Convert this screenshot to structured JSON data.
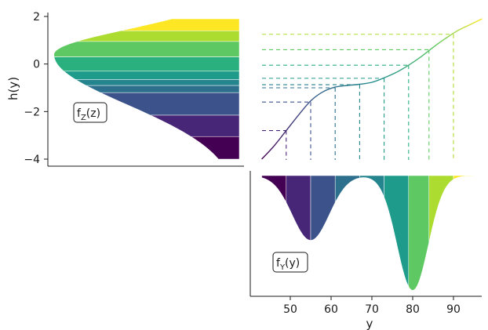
{
  "chart_data": [
    {
      "type": "area",
      "panel": "top-left",
      "description_label": "fZ(z)",
      "label_main": "f",
      "label_sub": "Z",
      "label_tail": "(z)",
      "ylabel": "h(y)",
      "ylim": [
        -4.3,
        2.3
      ],
      "yticks": [
        -4,
        -2,
        0,
        2
      ],
      "yticklabels": [
        "−4",
        "−2",
        "0",
        "2"
      ],
      "density_direction": "leftward",
      "bands_h": [
        {
          "from": -4.0,
          "to": -3.05,
          "color": "#440154"
        },
        {
          "from": -3.05,
          "to": -2.15,
          "color": "#482677"
        },
        {
          "from": -2.15,
          "to": -1.2,
          "color": "#3b528b"
        },
        {
          "from": -1.2,
          "to": -0.9,
          "color": "#2d708e"
        },
        {
          "from": -0.9,
          "to": -0.65,
          "color": "#25858e"
        },
        {
          "from": -0.65,
          "to": -0.3,
          "color": "#1e9b8a"
        },
        {
          "from": -0.3,
          "to": 0.3,
          "color": "#2ab07f"
        },
        {
          "from": 0.3,
          "to": 0.95,
          "color": "#5ec962"
        },
        {
          "from": 0.95,
          "to": 1.4,
          "color": "#addc30"
        },
        {
          "from": 1.4,
          "to": 1.9,
          "color": "#fde725"
        }
      ]
    },
    {
      "type": "line",
      "panel": "top-right",
      "curve_points": [
        [
          43,
          -4.0
        ],
        [
          46,
          -3.45
        ],
        [
          49,
          -2.8
        ],
        [
          52,
          -2.15
        ],
        [
          55,
          -1.55
        ],
        [
          58,
          -1.17
        ],
        [
          61,
          -0.97
        ],
        [
          64,
          -0.9
        ],
        [
          67,
          -0.85
        ],
        [
          70,
          -0.77
        ],
        [
          73,
          -0.58
        ],
        [
          76,
          -0.35
        ],
        [
          79,
          -0.05
        ],
        [
          82,
          0.3
        ],
        [
          85,
          0.7
        ],
        [
          88,
          1.07
        ],
        [
          91,
          1.4
        ],
        [
          94,
          1.65
        ],
        [
          97,
          1.9
        ]
      ],
      "breaks_x": [
        49,
        55,
        61,
        67,
        73,
        79,
        84,
        90
      ],
      "breaks_h": [
        -2.8,
        -1.6,
        -1.0,
        -0.87,
        -0.6,
        -0.05,
        0.6,
        1.25
      ],
      "colors": [
        "#482677",
        "#3b528b",
        "#2d708e",
        "#25858e",
        "#1e9b8a",
        "#2ab07f",
        "#5ec962",
        "#addc30"
      ]
    },
    {
      "type": "area",
      "panel": "bottom-right",
      "description_label": "fY(y)",
      "label_main": "f",
      "label_sub": "Y",
      "label_tail": "(y)",
      "xlabel": "y",
      "xlim": [
        41,
        98
      ],
      "xticks": [
        50,
        60,
        70,
        80,
        90
      ],
      "xticklabels": [
        "50",
        "60",
        "70",
        "80",
        "90"
      ],
      "density_direction": "downward",
      "bands_x": [
        {
          "from": 43,
          "to": 49,
          "color": "#440154"
        },
        {
          "from": 49,
          "to": 55,
          "color": "#482677"
        },
        {
          "from": 55,
          "to": 61,
          "color": "#3b528b"
        },
        {
          "from": 61,
          "to": 67,
          "color": "#2d708e"
        },
        {
          "from": 67,
          "to": 73,
          "color": "#25858e"
        },
        {
          "from": 73,
          "to": 79,
          "color": "#1e9b8a"
        },
        {
          "from": 79,
          "to": 84,
          "color": "#5ec962"
        },
        {
          "from": 84,
          "to": 90,
          "color": "#addc30"
        },
        {
          "from": 90,
          "to": 97,
          "color": "#fde725"
        }
      ],
      "mixture": [
        {
          "mean": 55,
          "sd": 4.5,
          "weight": 0.4
        },
        {
          "mean": 80,
          "sd": 3.8,
          "weight": 0.6
        }
      ]
    }
  ]
}
